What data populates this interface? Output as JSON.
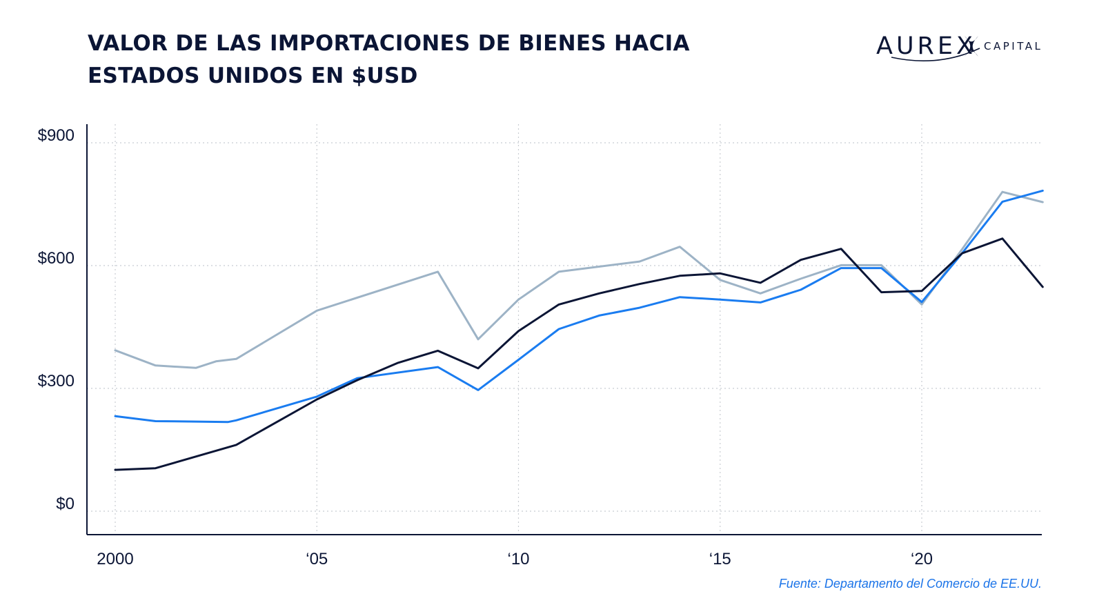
{
  "header": {
    "title_line1": "VALOR DE LAS IMPORTACIONES DE BIENES HACIA",
    "title_line2": "ESTADOS UNIDOS EN $USD",
    "logo_word": "AUREX",
    "logo_sub": "CAPITAL"
  },
  "source": "Fuente: Departamento del Comercio de EE.UU.",
  "colors": {
    "navy": "#0b1535",
    "blue": "#1a7cf0",
    "grey": "#9db3c6",
    "grid": "#c8ccd2"
  },
  "chart_data": {
    "type": "line",
    "xlim": [
      2000,
      2023
    ],
    "ylim": [
      -55,
      940
    ],
    "y_ticks": [
      0,
      300,
      600,
      900
    ],
    "y_tick_labels": [
      "$0",
      "$300",
      "$600",
      "$900"
    ],
    "x_ticks": [
      2000,
      2005,
      2010,
      2015,
      2020
    ],
    "x_tick_labels": [
      "2000",
      "‘05",
      "‘10",
      "‘15",
      "‘20"
    ],
    "grid": true,
    "series": [
      {
        "color": "#9db3c6",
        "x": [
          2000,
          2001,
          2002,
          2002.5,
          2003,
          2005,
          2008,
          2009,
          2010,
          2011,
          2013,
          2014,
          2015,
          2016,
          2017,
          2018,
          2019,
          2020,
          2021,
          2022,
          2023
        ],
        "y": [
          393,
          356,
          350,
          366,
          372,
          490,
          585,
          420,
          517,
          585,
          610,
          646,
          565,
          532,
          568,
          601,
          601,
          505,
          640,
          780,
          755
        ]
      },
      {
        "color": "#1a7cf0",
        "x": [
          2000,
          2001,
          2002,
          2002.8,
          2003,
          2005,
          2006,
          2008,
          2009,
          2010,
          2011,
          2012,
          2013,
          2014,
          2015,
          2016,
          2017,
          2018,
          2019,
          2020,
          2021,
          2022,
          2023
        ],
        "y": [
          232,
          220,
          219,
          218,
          222,
          280,
          325,
          352,
          296,
          370,
          445,
          478,
          497,
          523,
          517,
          510,
          541,
          594,
          594,
          511,
          630,
          756,
          783
        ]
      },
      {
        "color": "#0b1535",
        "x": [
          2000,
          2001,
          2003,
          2005,
          2006,
          2007,
          2008,
          2009,
          2010,
          2011,
          2012,
          2013,
          2014,
          2015,
          2016,
          2017,
          2018,
          2019,
          2020,
          2021,
          2022,
          2023
        ],
        "y": [
          101,
          105,
          162,
          273,
          320,
          362,
          392,
          349,
          440,
          505,
          532,
          555,
          575,
          581,
          558,
          614,
          641,
          535,
          538,
          630,
          666,
          548
        ]
      }
    ]
  }
}
